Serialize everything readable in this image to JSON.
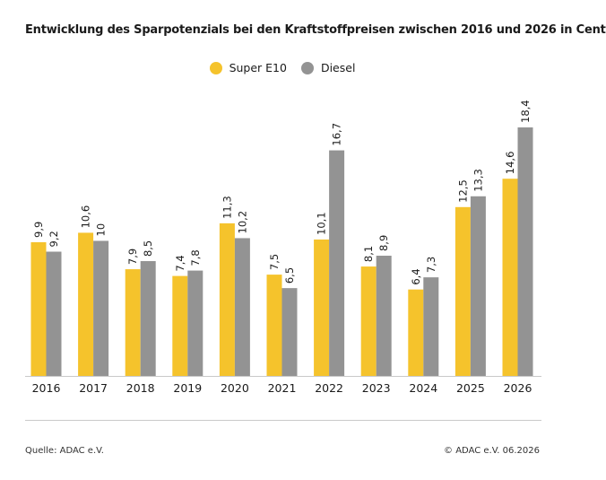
{
  "colors": {
    "super_e10": "#f5c32c",
    "diesel": "#939393",
    "axis": "#c9c9c9"
  },
  "legend": {
    "items": [
      {
        "label": "Super E10"
      },
      {
        "label": "Diesel"
      }
    ]
  },
  "footer": {
    "source": "Quelle: ADAC e.V.",
    "copyright": "© ADAC e.V. 06.2026"
  },
  "chart_data": {
    "type": "bar",
    "title": "Entwicklung des Sparpotenzials bei den Kraftstoffpreisen zwischen 2016 und 2026 in Cent",
    "categories": [
      "2016",
      "2017",
      "2018",
      "2019",
      "2020",
      "2021",
      "2022",
      "2023",
      "2024",
      "2025",
      "2026"
    ],
    "series": [
      {
        "name": "Super E10",
        "values": [
          9.9,
          10.6,
          7.9,
          7.4,
          11.3,
          7.5,
          10.1,
          8.1,
          6.4,
          12.5,
          14.6
        ],
        "labels": [
          "9,9",
          "10,6",
          "7,9",
          "7,4",
          "11,3",
          "7,5",
          "10,1",
          "8,1",
          "6,4",
          "12,5",
          "14,6"
        ]
      },
      {
        "name": "Diesel",
        "values": [
          9.2,
          10,
          8.5,
          7.8,
          10.2,
          6.5,
          16.7,
          8.9,
          7.3,
          13.3,
          18.4
        ],
        "labels": [
          "9,2",
          "10",
          "8,5",
          "7,8",
          "10,2",
          "6,5",
          "16,7",
          "8,9",
          "7,3",
          "13,3",
          "18,4"
        ]
      }
    ],
    "ylim": [
      0,
      20
    ],
    "grid": false,
    "legend_position": "top-center",
    "xlabel": "",
    "ylabel": ""
  }
}
